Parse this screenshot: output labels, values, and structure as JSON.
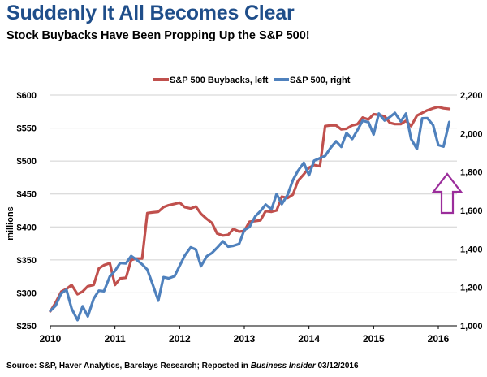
{
  "title": "Suddenly It All Becomes Clear",
  "subtitle": "Stock Buybacks Have Been Propping Up the S&P 500!",
  "source_prefix": "Source: S&P, Haver Analytics, Barclays Research; Reposted in ",
  "source_pub": "Business Insider",
  "source_date": " 03/12/2016",
  "colors": {
    "buybacks": "#c0504d",
    "sp500": "#4f81bd",
    "arrow": "#9b2d9b",
    "grid": "#d0d0d0"
  },
  "annotation": {
    "type": "arrow-up-icon",
    "x": 2016.0,
    "y_right": 1790
  },
  "chart_data": {
    "type": "line",
    "title": "Suddenly It All Becomes Clear",
    "subtitle": "Stock Buybacks Have Been Propping Up the S&P 500!",
    "xlabel": "",
    "ylabel": "millions",
    "xlim": [
      2010,
      2016.3
    ],
    "ylim_left": [
      250,
      600
    ],
    "ylim_right": [
      1000,
      2200
    ],
    "x_ticks": [
      "2010",
      "2011",
      "2012",
      "2013",
      "2014",
      "2015",
      "2016"
    ],
    "y_ticks_left": [
      "$250",
      "$300",
      "$350",
      "$400",
      "$450",
      "$500",
      "$550",
      "$600"
    ],
    "y_ticks_right": [
      "1,000",
      "1,200",
      "1,400",
      "1,600",
      "1,800",
      "2,000",
      "2,200"
    ],
    "grid": "horizontal",
    "legend_position": "top",
    "series": [
      {
        "name": "S&P 500 Buybacks, left",
        "axis": "left",
        "color": "#c0504d",
        "x": [
          2010.0,
          2010.08,
          2010.17,
          2010.25,
          2010.33,
          2010.42,
          2010.5,
          2010.58,
          2010.67,
          2010.75,
          2010.83,
          2010.92,
          2011.0,
          2011.08,
          2011.17,
          2011.25,
          2011.33,
          2011.42,
          2011.5,
          2011.58,
          2011.67,
          2011.75,
          2011.83,
          2011.92,
          2012.0,
          2012.08,
          2012.17,
          2012.25,
          2012.33,
          2012.42,
          2012.5,
          2012.58,
          2012.67,
          2012.75,
          2012.83,
          2012.92,
          2013.0,
          2013.08,
          2013.17,
          2013.25,
          2013.33,
          2013.42,
          2013.5,
          2013.58,
          2013.67,
          2013.75,
          2013.83,
          2013.92,
          2014.0,
          2014.08,
          2014.17,
          2014.25,
          2014.33,
          2014.42,
          2014.5,
          2014.58,
          2014.67,
          2014.75,
          2014.83,
          2014.92,
          2015.0,
          2015.08,
          2015.17,
          2015.25,
          2015.33,
          2015.42,
          2015.5,
          2015.58,
          2015.67,
          2015.75,
          2015.83,
          2015.92,
          2016.0,
          2016.08,
          2016.17
        ],
        "values": [
          272,
          285,
          302,
          306,
          312,
          298,
          302,
          310,
          312,
          337,
          342,
          345,
          312,
          322,
          323,
          350,
          352,
          352,
          421,
          422,
          423,
          430,
          433,
          435,
          437,
          430,
          428,
          431,
          420,
          412,
          406,
          390,
          387,
          388,
          397,
          393,
          394,
          408,
          409,
          410,
          424,
          423,
          425,
          446,
          444,
          449,
          470,
          480,
          490,
          494,
          492,
          553,
          554,
          554,
          548,
          549,
          554,
          556,
          566,
          563,
          571,
          570,
          568,
          558,
          556,
          556,
          561,
          553,
          569,
          573,
          577,
          580,
          582,
          580,
          579
        ]
      },
      {
        "name": "S&P 500, right",
        "axis": "right",
        "color": "#4f81bd",
        "x": [
          2010.0,
          2010.08,
          2010.17,
          2010.25,
          2010.33,
          2010.42,
          2010.5,
          2010.58,
          2010.67,
          2010.75,
          2010.83,
          2010.92,
          2011.0,
          2011.08,
          2011.17,
          2011.25,
          2011.33,
          2011.42,
          2011.5,
          2011.58,
          2011.67,
          2011.75,
          2011.83,
          2011.92,
          2012.0,
          2012.08,
          2012.17,
          2012.25,
          2012.33,
          2012.42,
          2012.5,
          2012.58,
          2012.67,
          2012.75,
          2012.83,
          2012.92,
          2013.0,
          2013.08,
          2013.17,
          2013.25,
          2013.33,
          2013.42,
          2013.5,
          2013.58,
          2013.67,
          2013.75,
          2013.83,
          2013.92,
          2014.0,
          2014.08,
          2014.17,
          2014.25,
          2014.33,
          2014.42,
          2014.5,
          2014.58,
          2014.67,
          2014.75,
          2014.83,
          2014.92,
          2015.0,
          2015.08,
          2015.17,
          2015.25,
          2015.33,
          2015.42,
          2015.5,
          2015.58,
          2015.67,
          2015.75,
          2015.83,
          2015.92,
          2016.0,
          2016.08,
          2016.17
        ],
        "values": [
          1078,
          1104,
          1169,
          1187,
          1089,
          1030,
          1102,
          1049,
          1141,
          1183,
          1180,
          1257,
          1286,
          1327,
          1325,
          1363,
          1345,
          1320,
          1292,
          1218,
          1131,
          1253,
          1247,
          1258,
          1312,
          1366,
          1408,
          1397,
          1310,
          1362,
          1379,
          1406,
          1440,
          1412,
          1416,
          1426,
          1498,
          1514,
          1569,
          1597,
          1631,
          1606,
          1686,
          1633,
          1682,
          1757,
          1806,
          1848,
          1783,
          1859,
          1872,
          1884,
          1924,
          1960,
          1931,
          2003,
          1972,
          2018,
          2067,
          2059,
          1995,
          2104,
          2068,
          2086,
          2107,
          2063,
          2104,
          1972,
          1920,
          2079,
          2080,
          2044,
          1940,
          1932,
          2060
        ]
      }
    ]
  }
}
